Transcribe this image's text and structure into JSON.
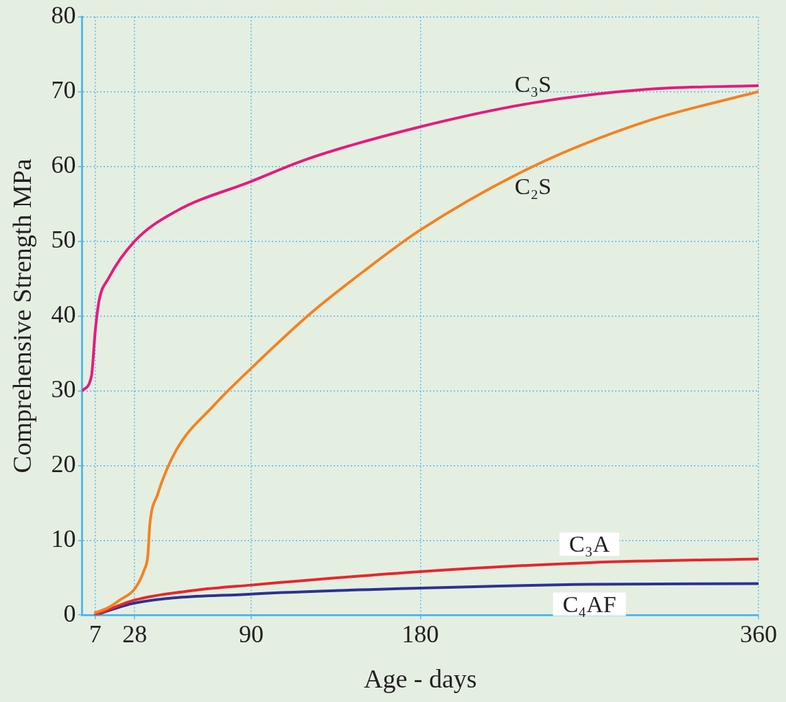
{
  "chart_data": {
    "type": "line",
    "xlabel": "Age - days",
    "ylabel": "Comprehensive Strength MPa",
    "xlim": [
      0,
      360
    ],
    "xticks": [
      7,
      28,
      90,
      180,
      360
    ],
    "ylim": [
      0,
      80
    ],
    "yticks": [
      0,
      10,
      20,
      30,
      40,
      50,
      60,
      70,
      80
    ],
    "grid": true,
    "legend": false,
    "marker": "none",
    "line_style": "solid",
    "series": [
      {
        "name": "C₃S",
        "color": "#e8197d",
        "x": [
          0,
          5,
          7,
          9,
          14,
          28,
          50,
          90,
          120,
          180,
          240,
          300,
          360
        ],
        "values": [
          30,
          32,
          38,
          42,
          45,
          50,
          54,
          58,
          61,
          65.3,
          68.5,
          70.3,
          70.8
        ]
      },
      {
        "name": "C₂S",
        "color": "#f58220",
        "x": [
          7,
          14,
          20,
          28,
          33,
          35,
          36,
          40,
          50,
          70,
          90,
          120,
          150,
          180,
          240,
          300,
          360
        ],
        "values": [
          0.3,
          1,
          2,
          3.5,
          6,
          8,
          12,
          16,
          22,
          28,
          33,
          40,
          46,
          51.5,
          60,
          66,
          70
        ]
      },
      {
        "name": "C₃A",
        "color": "#e8262b",
        "x": [
          7,
          28,
          60,
          90,
          180,
          270,
          360
        ],
        "values": [
          0,
          2,
          3.3,
          4,
          5.8,
          7,
          7.5
        ]
      },
      {
        "name": "C₄AF",
        "color": "#2e3192",
        "x": [
          7,
          28,
          90,
          180,
          270,
          360
        ],
        "values": [
          0,
          1.6,
          2.8,
          3.6,
          4.1,
          4.2
        ]
      }
    ]
  }
}
